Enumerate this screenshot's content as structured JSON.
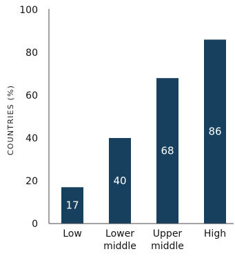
{
  "chart_data": {
    "type": "bar",
    "categories": [
      "Low",
      "Lower middle",
      "Upper middle",
      "High"
    ],
    "category_lines": [
      [
        "Low"
      ],
      [
        "Lower",
        "middle"
      ],
      [
        "Upper",
        "middle"
      ],
      [
        "High"
      ]
    ],
    "values": [
      17,
      40,
      68,
      86
    ],
    "data_labels": [
      "17",
      "40",
      "68",
      "86"
    ],
    "ylabel": "COUNTRIES (%)",
    "xlabel": "",
    "ylim": [
      0,
      100
    ],
    "yticks": [
      0,
      20,
      40,
      60,
      80,
      100
    ],
    "grid": false,
    "legend": "none",
    "bar_color": "#17405f",
    "label_color": "#ffffff",
    "axis_color": "#444444"
  }
}
